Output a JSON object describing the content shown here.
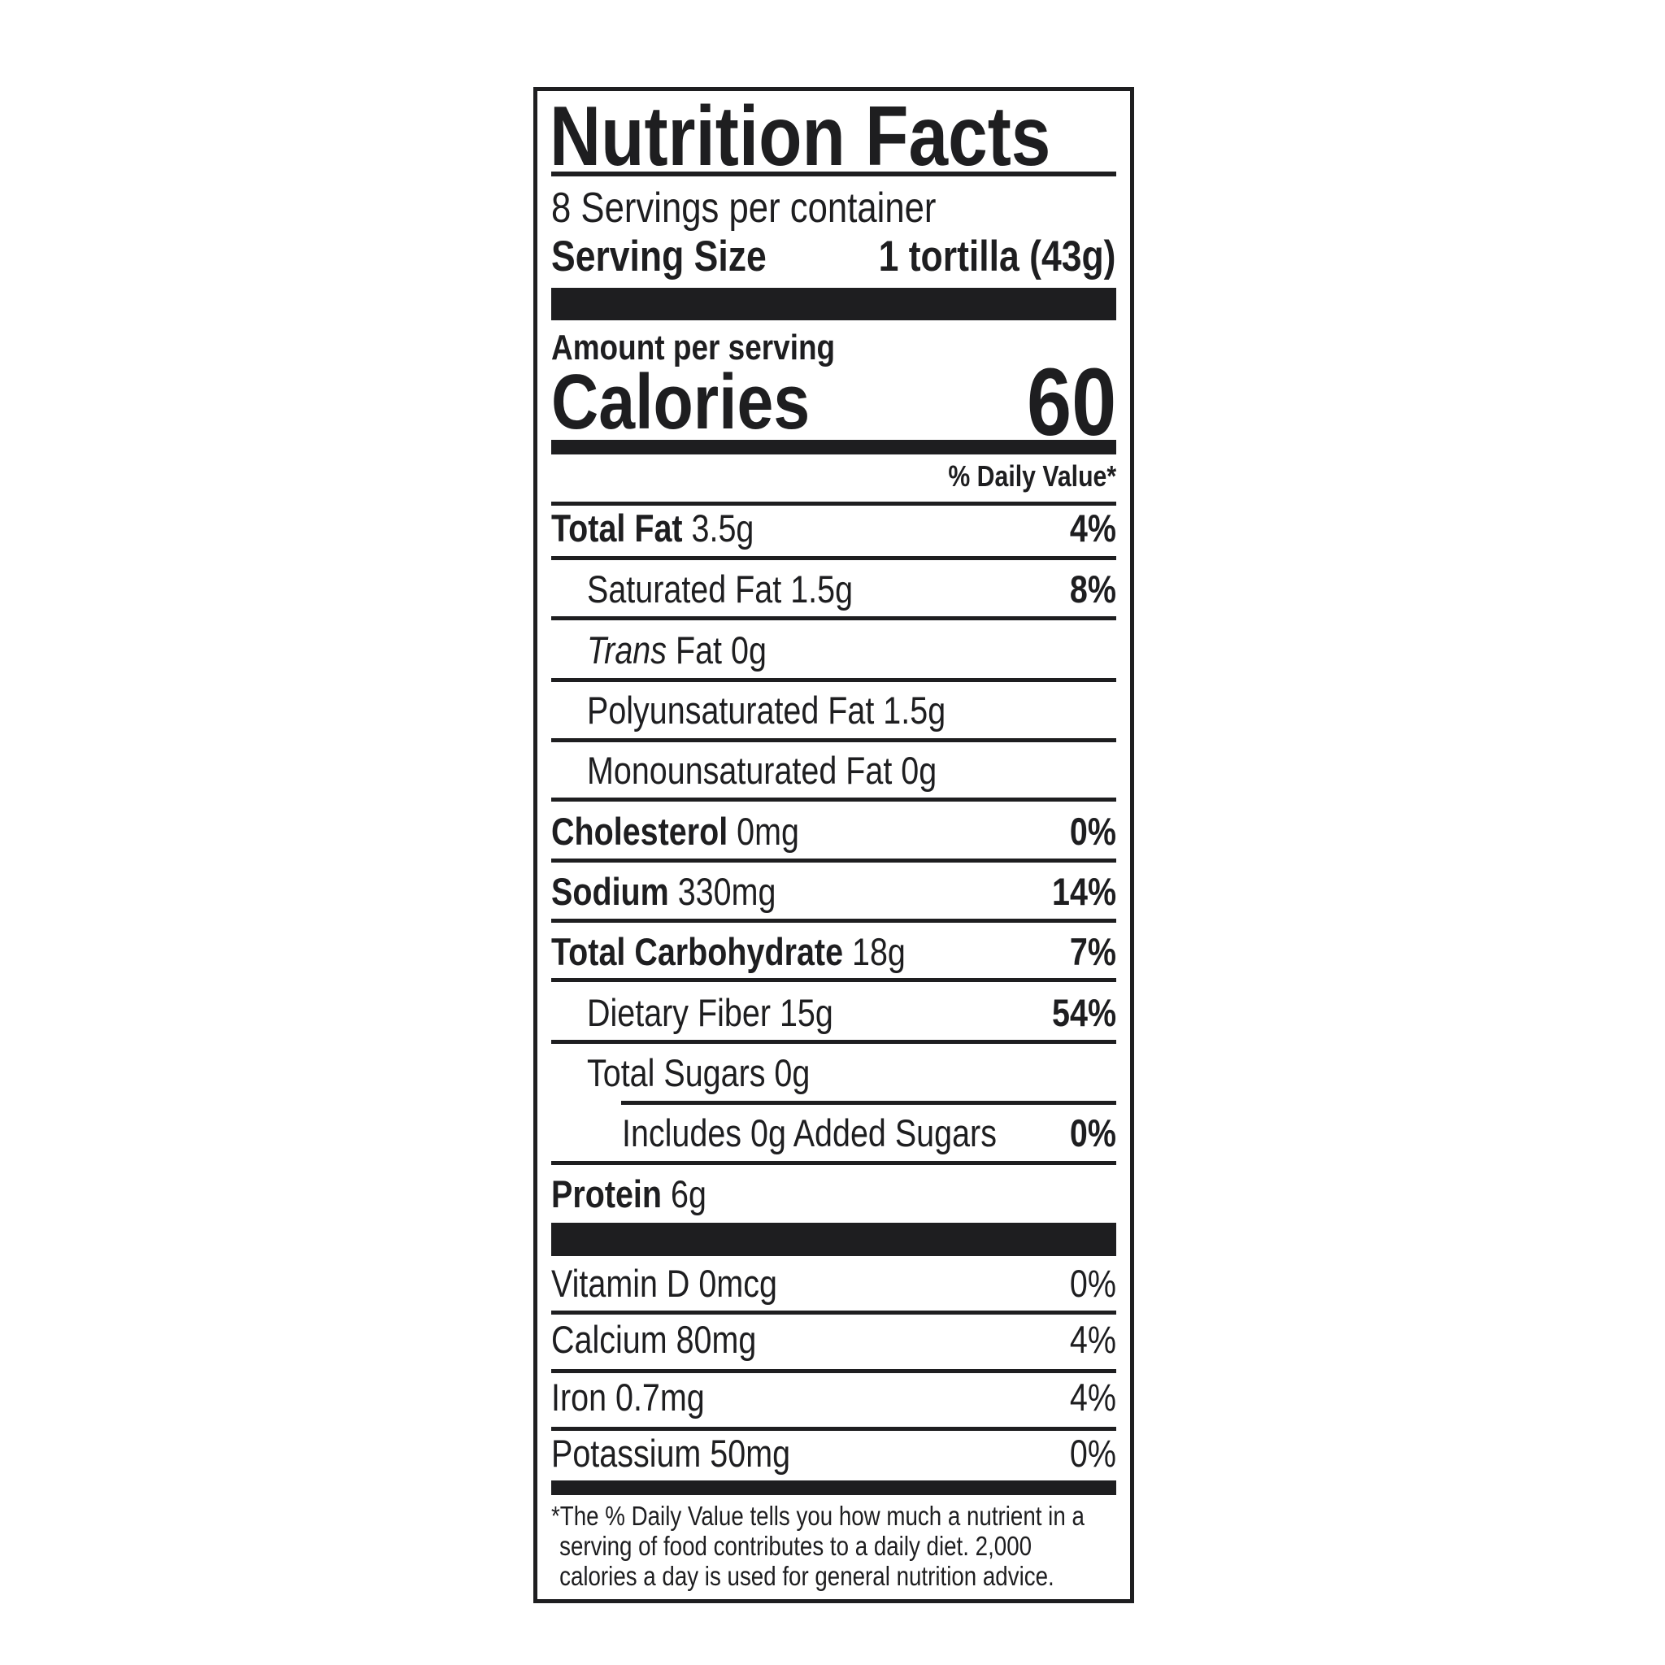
{
  "title": "Nutrition Facts",
  "servings_per_container": "8 Servings per container",
  "serving_size": {
    "label": "Serving Size",
    "value": "1 tortilla (43g)"
  },
  "amount_per_serving": "Amount per serving",
  "calories": {
    "label": "Calories",
    "value": "60"
  },
  "daily_value_header": "% Daily Value*",
  "nutrients": [
    {
      "name": "Total Fat",
      "amount": "3.5g",
      "dv": "4%"
    },
    {
      "name": "Saturated Fat",
      "amount": "1.5g",
      "dv": "8%"
    },
    {
      "name_italic": "Trans",
      "name": "Fat",
      "amount": "0g",
      "dv": ""
    },
    {
      "name": "Polyunsaturated Fat",
      "amount": "1.5g",
      "dv": ""
    },
    {
      "name": "Monounsaturated Fat",
      "amount": "0g",
      "dv": ""
    },
    {
      "name": "Cholesterol",
      "amount": "0mg",
      "dv": "0%"
    },
    {
      "name": "Sodium",
      "amount": "330mg",
      "dv": "14%"
    },
    {
      "name": "Total Carbohydrate",
      "amount": "18g",
      "dv": "7%"
    },
    {
      "name": "Dietary Fiber",
      "amount": "15g",
      "dv": "54%"
    },
    {
      "name": "Total Sugars",
      "amount": "0g",
      "dv": ""
    },
    {
      "text": "Includes 0g Added Sugars",
      "dv": "0%"
    },
    {
      "name": "Protein",
      "amount": "6g",
      "dv": ""
    }
  ],
  "vitamins": [
    {
      "text": "Vitamin D 0mcg",
      "dv": "0%"
    },
    {
      "text": "Calcium 80mg",
      "dv": "4%"
    },
    {
      "text": "Iron 0.7mg",
      "dv": "4%"
    },
    {
      "text": "Potassium 50mg",
      "dv": "0%"
    }
  ],
  "footnote": [
    "*The % Daily Value tells you how much a nutrient in a",
    "serving of food contributes to a daily diet. 2,000",
    "calories a day is used for general nutrition advice."
  ]
}
